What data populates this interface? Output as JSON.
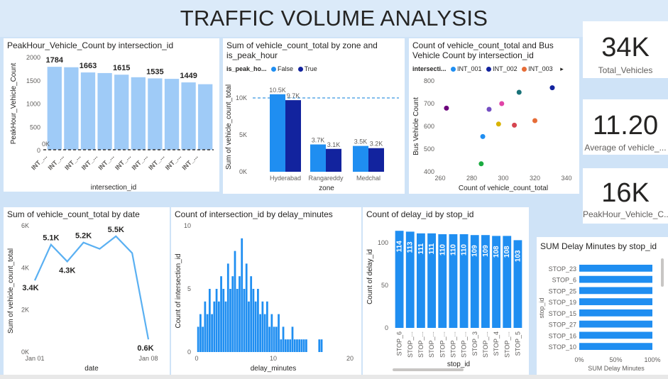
{
  "title": "TRAFFIC VOLUME ANALYSIS",
  "colors": {
    "light_blue": "#9fcbf7",
    "blue": "#1f8ef1",
    "navy": "#12239e",
    "orange": "#e66c37",
    "accent_line": "#5aa9e6"
  },
  "kpis": [
    {
      "value": "34K",
      "label": "Total_Vehicles"
    },
    {
      "value": "11.20",
      "label": "Average of vehicle_..."
    },
    {
      "value": "16K",
      "label": "PeakHour_Vehicle_C..."
    }
  ],
  "charts": {
    "peak": {
      "title": "PeakHour_Vehicle_Count by intersection_id",
      "xlabel": "intersection_id",
      "ylabel": "PeakHour_Vehicle_Count",
      "y_ticks": [
        "2000",
        "1500",
        "1000",
        "500",
        "0"
      ],
      "zero_label": "0K",
      "cat_label": "INT_..."
    },
    "zone": {
      "title": "Sum of vehicle_count_total by zone and is_peak_hour",
      "legend_title": "is_peak_ho...",
      "legend_false": "False",
      "legend_true": "True",
      "xlabel": "zone",
      "ylabel": "Sum of vehicle_count_total",
      "y_ticks": [
        "10K",
        "5K",
        "0K"
      ]
    },
    "scatter": {
      "title": "Count of vehicle_count_total and Bus Vehicle Count by intersection_id",
      "legend_title": "intersecti...",
      "legend_items": [
        "INT_001",
        "INT_002",
        "INT_003"
      ],
      "legend_more": "▸",
      "xlabel": "Count of vehicle_count_total",
      "ylabel": "Bus Vehicle Count",
      "x_ticks": [
        "260",
        "280",
        "300",
        "320",
        "340"
      ],
      "y_ticks": [
        "800",
        "700",
        "600",
        "500",
        "400"
      ]
    },
    "date": {
      "title": "Sum of vehicle_count_total by date",
      "xlabel": "date",
      "ylabel": "Sum of vehicle_count_total",
      "y_ticks": [
        "6K",
        "4K",
        "2K",
        "0K"
      ],
      "x_ticks": [
        "Jan 01",
        "Jan 08"
      ]
    },
    "delay": {
      "title": "Count of intersection_id by delay_minutes",
      "xlabel": "delay_minutes",
      "ylabel": "Count of intersection_id",
      "y_ticks": [
        "10",
        "5",
        "0"
      ],
      "x_ticks": [
        "0",
        "10",
        "20"
      ]
    },
    "stop": {
      "title": "Count of delay_id by stop_id",
      "xlabel": "stop_id",
      "ylabel": "Count of delay_id",
      "y_ticks": [
        "100",
        "50",
        "0"
      ]
    },
    "sumdelay": {
      "title": "SUM Delay Minutes by stop_id",
      "xlabel": "SUM Delay Minutes",
      "ylabel": "stop_id",
      "x_ticks": [
        "0%",
        "50%",
        "100%"
      ]
    }
  },
  "chart_data": [
    {
      "type": "bar",
      "title": "PeakHour_Vehicle_Count by intersection_id",
      "xlabel": "intersection_id",
      "ylabel": "PeakHour_Vehicle_Count",
      "categories": [
        "INT_...",
        "INT_...",
        "INT_...",
        "INT_...",
        "INT_...",
        "INT_...",
        "INT_...",
        "INT_...",
        "INT_...",
        "INT_..."
      ],
      "values": [
        1784,
        1775,
        1663,
        1650,
        1615,
        1560,
        1535,
        1525,
        1449,
        1410
      ],
      "labels": [
        "1784",
        "",
        "1663",
        "",
        "1615",
        "",
        "1535",
        "",
        "1449",
        ""
      ],
      "ylim": [
        0,
        2000
      ]
    },
    {
      "type": "bar",
      "title": "Sum of vehicle_count_total by zone and is_peak_hour",
      "xlabel": "zone",
      "ylabel": "Sum of vehicle_count_total",
      "categories": [
        "Hyderabad",
        "Rangareddy",
        "Medchal"
      ],
      "series": [
        {
          "name": "False",
          "values": [
            10.5,
            3.7,
            3.5
          ],
          "labels": [
            "10.5K",
            "3.7K",
            "3.5K"
          ]
        },
        {
          "name": "True",
          "values": [
            9.7,
            3.1,
            3.2
          ],
          "labels": [
            "9.7K",
            "3.1K",
            "3.2K"
          ]
        }
      ],
      "reference_line": 10.0,
      "ylim": [
        0,
        12.5
      ]
    },
    {
      "type": "scatter",
      "title": "Count of vehicle_count_total and Bus Vehicle Count by intersection_id",
      "xlabel": "Count of vehicle_count_total",
      "ylabel": "Bus Vehicle Count",
      "series": [
        {
          "name": "INT_001",
          "color": "#1f8ef1",
          "points": [
            [
              287,
              555
            ]
          ]
        },
        {
          "name": "INT_002",
          "color": "#12239e",
          "points": [
            [
              331,
              770
            ]
          ]
        },
        {
          "name": "INT_003",
          "color": "#e66c37",
          "points": [
            [
              320,
              625
            ]
          ]
        },
        {
          "color": "#6b007b",
          "points": [
            [
              264,
              680
            ]
          ]
        },
        {
          "color": "#e044a7",
          "points": [
            [
              299,
              700
            ]
          ]
        },
        {
          "color": "#744ec2",
          "points": [
            [
              291,
              675
            ]
          ]
        },
        {
          "color": "#d9b300",
          "points": [
            [
              297,
              610
            ]
          ]
        },
        {
          "color": "#d64550",
          "points": [
            [
              307,
              605
            ]
          ]
        },
        {
          "color": "#197278",
          "points": [
            [
              310,
              750
            ]
          ]
        },
        {
          "color": "#1aab40",
          "points": [
            [
              286,
              435
            ]
          ]
        }
      ],
      "xlim": [
        260,
        340
      ],
      "ylim": [
        400,
        800
      ]
    },
    {
      "type": "line",
      "title": "Sum of vehicle_count_total by date",
      "xlabel": "date",
      "ylabel": "Sum of vehicle_count_total",
      "x": [
        "Jan 01",
        "Jan 02",
        "Jan 03",
        "Jan 04",
        "Jan 05",
        "Jan 06",
        "Jan 07",
        "Jan 08"
      ],
      "values": [
        3.4,
        5.1,
        4.3,
        5.2,
        4.9,
        5.5,
        4.7,
        0.6
      ],
      "labels": [
        "3.4K",
        "5.1K",
        "4.3K",
        "5.2K",
        "",
        "5.5K",
        "",
        "0.6K"
      ],
      "ylim": [
        0,
        6
      ]
    },
    {
      "type": "bar",
      "title": "Count of intersection_id by delay_minutes",
      "xlabel": "delay_minutes",
      "ylabel": "Count of intersection_id",
      "x": [
        0.2,
        0.5,
        0.8,
        1.1,
        1.4,
        1.7,
        2.0,
        2.3,
        2.6,
        2.9,
        3.2,
        3.5,
        3.8,
        4.1,
        4.4,
        4.7,
        5.0,
        5.3,
        5.6,
        5.9,
        6.2,
        6.5,
        6.8,
        7.1,
        7.4,
        7.7,
        8.0,
        8.3,
        8.6,
        8.9,
        9.2,
        9.5,
        9.8,
        10.1,
        10.4,
        10.7,
        11.0,
        11.3,
        11.6,
        11.9,
        12.2,
        12.5,
        12.8,
        13.1,
        13.4,
        13.7,
        14.0,
        14.3,
        16.0,
        16.3
      ],
      "values": [
        2,
        3,
        2,
        4,
        3,
        5,
        3,
        4,
        5,
        4,
        6,
        5,
        4,
        7,
        5,
        6,
        8,
        5,
        6,
        9,
        5,
        7,
        4,
        6,
        5,
        4,
        5,
        3,
        4,
        3,
        4,
        2,
        3,
        2,
        2,
        3,
        1,
        2,
        1,
        1,
        1,
        2,
        1,
        1,
        1,
        1,
        1,
        1,
        1,
        1
      ],
      "xlim": [
        0,
        20
      ],
      "ylim": [
        0,
        10
      ]
    },
    {
      "type": "bar",
      "title": "Count of delay_id by stop_id",
      "xlabel": "stop_id",
      "ylabel": "Count of delay_id",
      "categories": [
        "STOP_6",
        "STOP_...",
        "STOP_...",
        "STOP_...",
        "STOP_...",
        "STOP_...",
        "STOP_...",
        "STOP_3",
        "STOP_...",
        "STOP_4",
        "STOP_...",
        "STOP_5"
      ],
      "values": [
        114,
        113,
        111,
        111,
        110,
        110,
        110,
        109,
        109,
        108,
        108,
        103
      ],
      "ylim": [
        0,
        120
      ]
    },
    {
      "type": "bar",
      "title": "SUM Delay Minutes by stop_id",
      "xlabel": "SUM Delay Minutes",
      "ylabel": "stop_id",
      "orientation": "horizontal",
      "categories": [
        "STOP_23",
        "STOP_6",
        "STOP_25",
        "STOP_19",
        "STOP_15",
        "STOP_27",
        "STOP_16",
        "STOP_10"
      ],
      "values": [
        100,
        100,
        100,
        100,
        100,
        100,
        100,
        100
      ],
      "xlim": [
        0,
        100
      ]
    }
  ]
}
